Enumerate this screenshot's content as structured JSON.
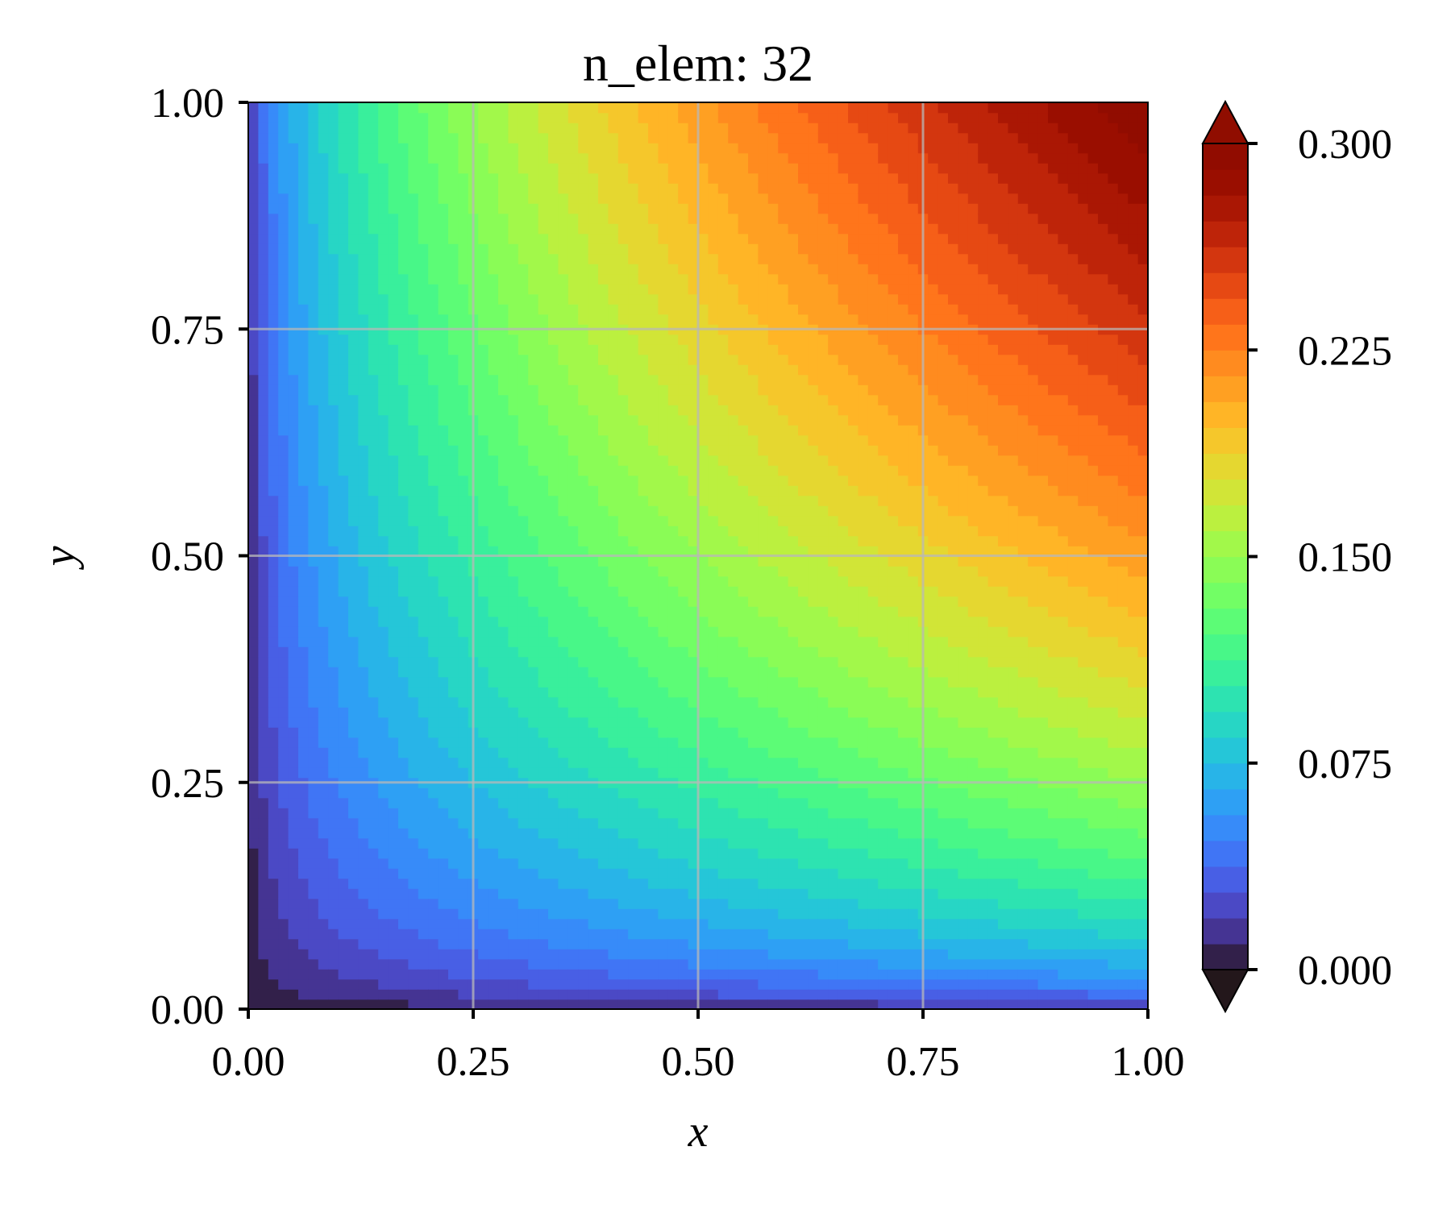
{
  "chart_data": {
    "type": "heatmap",
    "subtype": "filled-contour",
    "title": "n_elem: 32",
    "xlabel": "x",
    "ylabel": "y",
    "xlim": [
      0,
      1
    ],
    "ylim": [
      0,
      1
    ],
    "x_ticks": [
      "0.00",
      "0.25",
      "0.50",
      "0.75",
      "1.00"
    ],
    "y_ticks": [
      "0.00",
      "0.25",
      "0.50",
      "0.75",
      "1.00"
    ],
    "grid": true,
    "colormap": "turbo",
    "colorbar": {
      "range": [
        0,
        0.3
      ],
      "levels": 32,
      "extend": "both",
      "ticks": [
        "0.000",
        "0.075",
        "0.150",
        "0.225",
        "0.300"
      ]
    },
    "field": {
      "description_formula": "u(x,y) = 0.3 * sqrt(x*y) on unit square, piecewise-linear on 32-element mesh",
      "value_at_corners": {
        "(0,0)": 0.0,
        "(1,0)": 0.0,
        "(0,1)": 0.0,
        "(1,1)": 0.3
      },
      "values_sample": [
        {
          "x": 0.5,
          "y": 0.5,
          "u": 0.15
        },
        {
          "x": 1.0,
          "y": 0.5,
          "u": 0.21
        },
        {
          "x": 0.5,
          "y": 1.0,
          "u": 0.21
        },
        {
          "x": 0.25,
          "y": 0.25,
          "u": 0.075
        },
        {
          "x": 0.75,
          "y": 0.75,
          "u": 0.225
        }
      ]
    }
  }
}
